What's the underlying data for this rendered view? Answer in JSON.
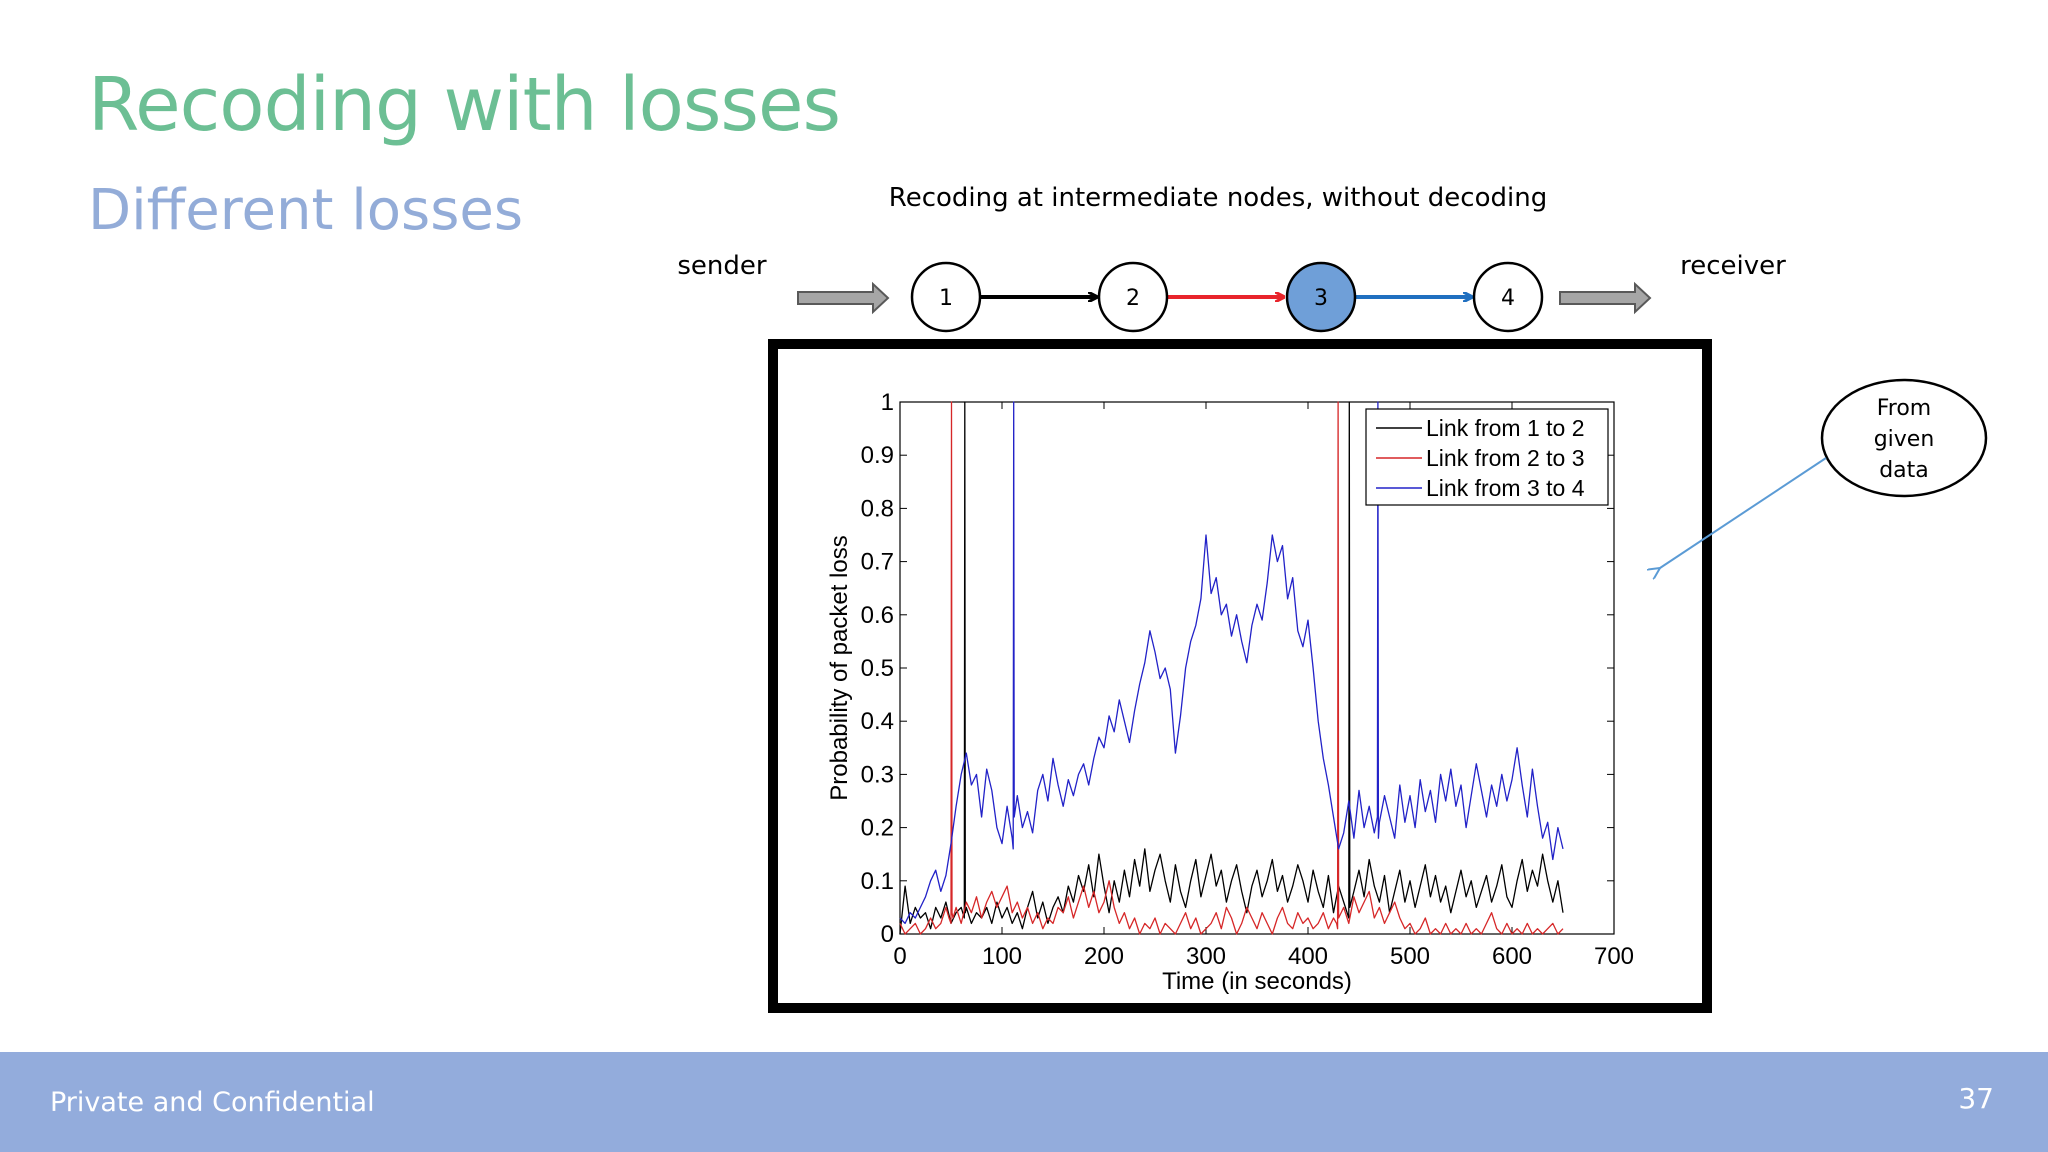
{
  "slide": {
    "title": "Recoding with losses",
    "subtitle": "Different losses",
    "footer_text": "Private and Confidential",
    "page_number": "37"
  },
  "diagram": {
    "caption": "Recoding at intermediate nodes, without decoding",
    "sender_label": "sender",
    "receiver_label": "receiver",
    "nodes": [
      "1",
      "2",
      "3",
      "4"
    ],
    "link_colors": [
      "#000000",
      "#e8242b",
      "#1f6fc0"
    ],
    "highlight_node_color": "#6f9fd8"
  },
  "callout": {
    "lines": [
      "From",
      "given",
      "data"
    ],
    "arrow_color": "#5b9bd5"
  },
  "chart_data": {
    "type": "line",
    "xlabel": "Time (in seconds)",
    "ylabel": "Probability of packet loss",
    "xlim": [
      0,
      700
    ],
    "ylim": [
      0,
      1
    ],
    "xticks": [
      0,
      100,
      200,
      300,
      400,
      500,
      600,
      700
    ],
    "yticks": [
      0,
      0.1,
      0.2,
      0.3,
      0.4,
      0.5,
      0.6,
      0.7,
      0.8,
      0.9,
      1
    ],
    "ytick_labels": [
      "0",
      "0.1",
      "0.2",
      "0.3",
      "0.4",
      "0.5",
      "0.6",
      "0.7",
      "0.8",
      "0.9",
      "1"
    ],
    "legend_position": "top-right",
    "series": [
      {
        "name": "Link from 1 to 2",
        "color": "#000000",
        "x": [
          0,
          5,
          10,
          15,
          20,
          25,
          30,
          35,
          40,
          45,
          50,
          55,
          60,
          63,
          63.5,
          64,
          65,
          70,
          75,
          80,
          85,
          90,
          95,
          100,
          105,
          110,
          115,
          120,
          125,
          130,
          135,
          140,
          145,
          150,
          155,
          160,
          165,
          170,
          175,
          180,
          185,
          190,
          195,
          200,
          205,
          210,
          215,
          220,
          225,
          230,
          235,
          240,
          245,
          250,
          255,
          260,
          265,
          270,
          275,
          280,
          285,
          290,
          295,
          300,
          305,
          310,
          315,
          320,
          325,
          330,
          335,
          340,
          345,
          350,
          355,
          360,
          365,
          370,
          375,
          380,
          385,
          390,
          395,
          400,
          405,
          410,
          415,
          420,
          425,
          430,
          435,
          440,
          440.5,
          441,
          445,
          450,
          455,
          460,
          465,
          470,
          475,
          480,
          485,
          490,
          495,
          500,
          505,
          510,
          515,
          520,
          525,
          530,
          535,
          540,
          545,
          550,
          555,
          560,
          565,
          570,
          575,
          580,
          585,
          590,
          595,
          600,
          605,
          610,
          615,
          620,
          625,
          630,
          635,
          640,
          645,
          650
        ],
        "y": [
          0.0,
          0.09,
          0.02,
          0.05,
          0.03,
          0.04,
          0.01,
          0.05,
          0.03,
          0.06,
          0.02,
          0.04,
          0.05,
          0.03,
          1.0,
          0.04,
          0.05,
          0.02,
          0.04,
          0.03,
          0.05,
          0.02,
          0.06,
          0.03,
          0.05,
          0.02,
          0.04,
          0.01,
          0.05,
          0.08,
          0.03,
          0.06,
          0.02,
          0.05,
          0.07,
          0.04,
          0.09,
          0.06,
          0.11,
          0.08,
          0.13,
          0.07,
          0.15,
          0.09,
          0.04,
          0.1,
          0.06,
          0.12,
          0.07,
          0.14,
          0.09,
          0.16,
          0.08,
          0.12,
          0.15,
          0.1,
          0.06,
          0.13,
          0.08,
          0.05,
          0.1,
          0.14,
          0.07,
          0.11,
          0.15,
          0.09,
          0.12,
          0.06,
          0.1,
          0.13,
          0.08,
          0.04,
          0.09,
          0.12,
          0.07,
          0.1,
          0.14,
          0.08,
          0.11,
          0.06,
          0.09,
          0.13,
          0.1,
          0.06,
          0.12,
          0.08,
          0.05,
          0.11,
          0.04,
          0.09,
          0.06,
          0.03,
          1.0,
          0.05,
          0.08,
          0.12,
          0.07,
          0.14,
          0.09,
          0.06,
          0.11,
          0.04,
          0.08,
          0.12,
          0.06,
          0.1,
          0.05,
          0.09,
          0.13,
          0.07,
          0.11,
          0.06,
          0.09,
          0.04,
          0.08,
          0.12,
          0.07,
          0.1,
          0.05,
          0.08,
          0.11,
          0.06,
          0.09,
          0.13,
          0.07,
          0.05,
          0.1,
          0.14,
          0.08,
          0.12,
          0.09,
          0.15,
          0.1,
          0.06,
          0.1,
          0.04
        ]
      },
      {
        "name": "Link from 2 to 3",
        "color": "#d62728",
        "x": [
          0,
          5,
          10,
          15,
          20,
          25,
          30,
          35,
          40,
          45,
          48,
          50,
          50.5,
          51,
          52,
          55,
          60,
          65,
          70,
          75,
          80,
          85,
          90,
          95,
          100,
          105,
          110,
          115,
          120,
          125,
          130,
          135,
          140,
          145,
          150,
          155,
          160,
          165,
          170,
          175,
          180,
          185,
          190,
          195,
          200,
          205,
          210,
          215,
          220,
          225,
          230,
          235,
          240,
          245,
          250,
          255,
          260,
          265,
          270,
          275,
          280,
          285,
          290,
          295,
          300,
          305,
          310,
          315,
          320,
          325,
          330,
          335,
          340,
          345,
          350,
          355,
          360,
          365,
          370,
          375,
          380,
          385,
          390,
          395,
          400,
          405,
          410,
          415,
          420,
          425,
          428,
          429,
          429.5,
          430,
          435,
          440,
          445,
          450,
          455,
          460,
          465,
          470,
          475,
          480,
          485,
          490,
          495,
          500,
          505,
          510,
          515,
          520,
          525,
          530,
          535,
          540,
          545,
          550,
          555,
          560,
          565,
          570,
          575,
          580,
          585,
          590,
          595,
          600,
          605,
          610,
          615,
          620,
          625,
          630,
          635,
          640,
          645,
          650
        ],
        "y": [
          0.02,
          0.0,
          0.01,
          0.02,
          0.0,
          0.01,
          0.03,
          0.01,
          0.02,
          0.05,
          0.03,
          0.02,
          1.0,
          0.04,
          0.03,
          0.05,
          0.02,
          0.06,
          0.04,
          0.07,
          0.03,
          0.06,
          0.08,
          0.05,
          0.07,
          0.09,
          0.04,
          0.06,
          0.03,
          0.05,
          0.02,
          0.04,
          0.01,
          0.03,
          0.02,
          0.05,
          0.04,
          0.07,
          0.03,
          0.06,
          0.09,
          0.05,
          0.08,
          0.04,
          0.06,
          0.1,
          0.05,
          0.02,
          0.04,
          0.01,
          0.03,
          0.0,
          0.02,
          0.01,
          0.03,
          0.0,
          0.02,
          0.01,
          0.0,
          0.02,
          0.04,
          0.01,
          0.03,
          0.0,
          0.01,
          0.02,
          0.04,
          0.01,
          0.05,
          0.03,
          0.0,
          0.02,
          0.05,
          0.03,
          0.01,
          0.04,
          0.02,
          0.0,
          0.03,
          0.05,
          0.02,
          0.01,
          0.04,
          0.02,
          0.03,
          0.01,
          0.02,
          0.04,
          0.01,
          0.03,
          0.02,
          0.01,
          1.0,
          0.03,
          0.05,
          0.02,
          0.07,
          0.04,
          0.06,
          0.08,
          0.03,
          0.05,
          0.02,
          0.04,
          0.06,
          0.03,
          0.01,
          0.02,
          0.0,
          0.01,
          0.03,
          0.0,
          0.01,
          0.0,
          0.02,
          0.0,
          0.01,
          0.0,
          0.02,
          0.0,
          0.01,
          0.0,
          0.02,
          0.04,
          0.01,
          0.0,
          0.02,
          0.0,
          0.01,
          0.0,
          0.02,
          0.0,
          0.01,
          0.0,
          0.01,
          0.02,
          0.0,
          0.01
        ]
      },
      {
        "name": "Link from 3 to 4",
        "color": "#2222c8",
        "x": [
          0,
          5,
          10,
          15,
          20,
          25,
          30,
          35,
          40,
          45,
          50,
          55,
          60,
          65,
          70,
          75,
          80,
          85,
          90,
          95,
          100,
          105,
          110,
          111,
          111.5,
          112,
          115,
          120,
          125,
          130,
          135,
          140,
          145,
          150,
          155,
          160,
          165,
          170,
          175,
          180,
          185,
          190,
          195,
          200,
          205,
          210,
          215,
          220,
          225,
          230,
          235,
          240,
          245,
          250,
          255,
          260,
          265,
          270,
          275,
          280,
          285,
          290,
          295,
          300,
          305,
          310,
          315,
          320,
          325,
          330,
          335,
          340,
          345,
          350,
          355,
          360,
          365,
          370,
          375,
          380,
          385,
          390,
          395,
          400,
          405,
          410,
          415,
          420,
          425,
          430,
          435,
          440,
          445,
          450,
          455,
          460,
          465,
          468,
          468.5,
          469,
          470,
          475,
          480,
          485,
          490,
          495,
          500,
          505,
          510,
          515,
          520,
          525,
          530,
          535,
          540,
          545,
          550,
          555,
          560,
          565,
          570,
          575,
          580,
          585,
          590,
          595,
          600,
          605,
          610,
          615,
          620,
          625,
          630,
          635,
          640,
          645,
          650
        ],
        "y": [
          0.03,
          0.02,
          0.04,
          0.03,
          0.05,
          0.07,
          0.1,
          0.12,
          0.08,
          0.11,
          0.17,
          0.24,
          0.3,
          0.34,
          0.28,
          0.3,
          0.22,
          0.31,
          0.27,
          0.2,
          0.17,
          0.24,
          0.18,
          0.16,
          1.0,
          0.22,
          0.26,
          0.2,
          0.23,
          0.19,
          0.27,
          0.3,
          0.25,
          0.33,
          0.28,
          0.24,
          0.29,
          0.26,
          0.3,
          0.32,
          0.28,
          0.33,
          0.37,
          0.35,
          0.41,
          0.38,
          0.44,
          0.4,
          0.36,
          0.42,
          0.47,
          0.51,
          0.57,
          0.53,
          0.48,
          0.5,
          0.46,
          0.34,
          0.41,
          0.5,
          0.55,
          0.58,
          0.63,
          0.75,
          0.64,
          0.67,
          0.6,
          0.62,
          0.56,
          0.6,
          0.55,
          0.51,
          0.58,
          0.62,
          0.59,
          0.66,
          0.75,
          0.7,
          0.73,
          0.63,
          0.67,
          0.57,
          0.54,
          0.59,
          0.5,
          0.4,
          0.33,
          0.28,
          0.22,
          0.16,
          0.19,
          0.25,
          0.18,
          0.27,
          0.2,
          0.24,
          0.19,
          0.22,
          1.0,
          0.18,
          0.21,
          0.26,
          0.22,
          0.18,
          0.28,
          0.21,
          0.26,
          0.2,
          0.29,
          0.23,
          0.27,
          0.21,
          0.3,
          0.25,
          0.31,
          0.24,
          0.28,
          0.2,
          0.26,
          0.32,
          0.27,
          0.22,
          0.28,
          0.24,
          0.3,
          0.25,
          0.29,
          0.35,
          0.28,
          0.22,
          0.31,
          0.24,
          0.18,
          0.21,
          0.14,
          0.2,
          0.16
        ]
      }
    ]
  }
}
